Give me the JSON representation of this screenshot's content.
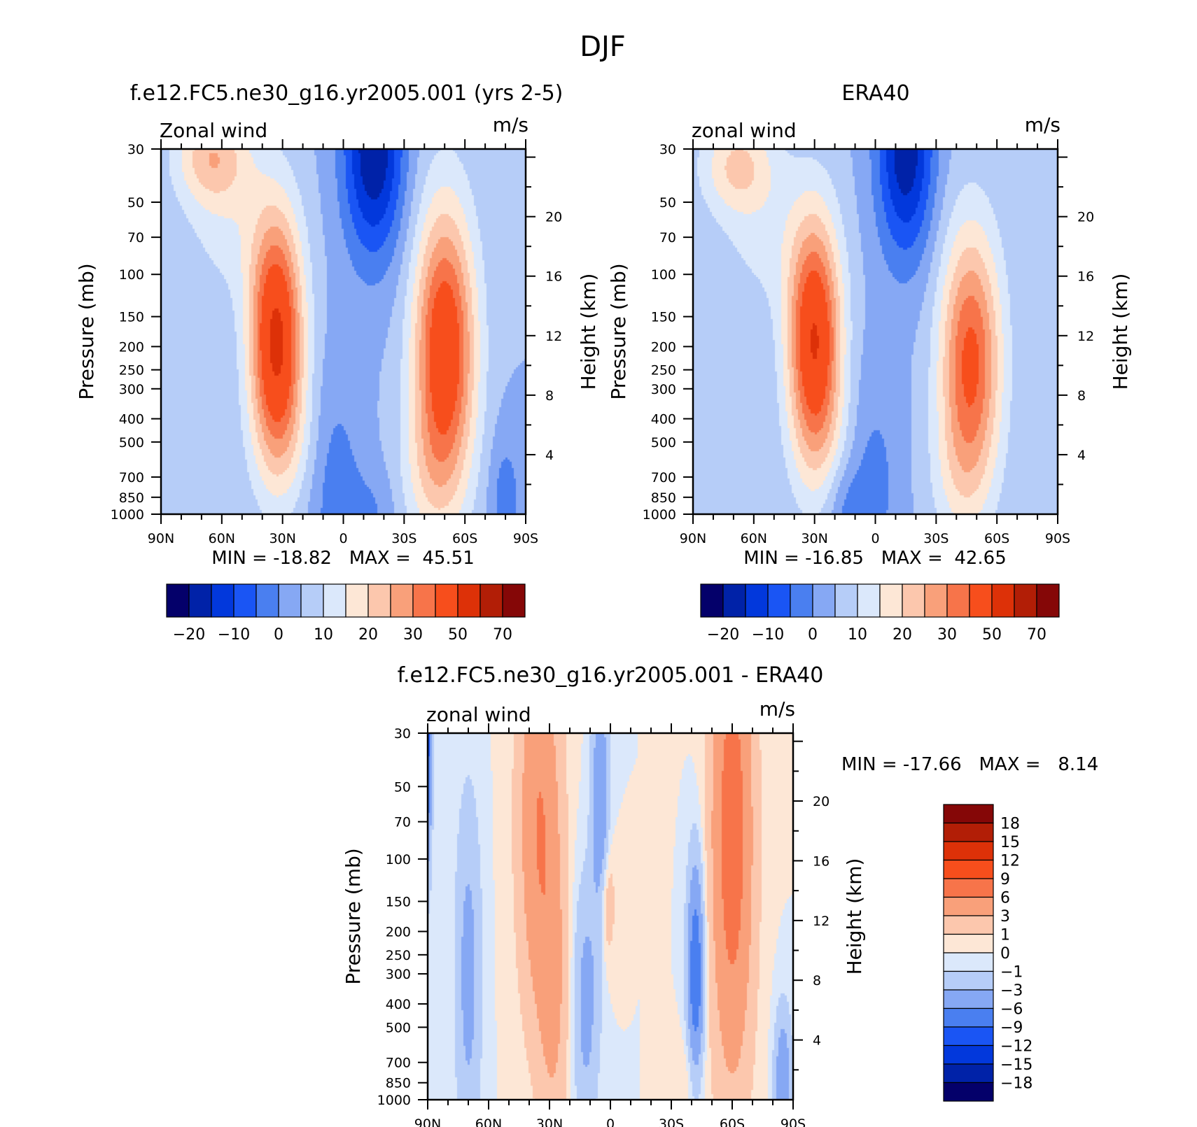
{
  "figure": {
    "title": "DJF"
  },
  "colors": {
    "main_levels": [
      -25,
      -20,
      -15,
      -10,
      -5,
      0,
      5,
      10,
      15,
      20,
      25,
      30,
      40,
      50,
      60,
      70
    ],
    "main_palette": [
      "#04006a",
      "#0022a8",
      "#0238dc",
      "#1a55f4",
      "#4a7ff0",
      "#86a8f4",
      "#b6cdf8",
      "#dbe8fb",
      "#fde7d6",
      "#fcc7ad",
      "#f9a07a",
      "#f7744a",
      "#f74e1c",
      "#dd3108",
      "#b21e06",
      "#850707"
    ],
    "diff_levels": [
      -18,
      -15,
      -12,
      -9,
      -6,
      -3,
      -1,
      0,
      1,
      3,
      6,
      9,
      12,
      15,
      18
    ],
    "diff_palette": [
      "#04006a",
      "#0022a8",
      "#0238dc",
      "#1a55f4",
      "#4a7ff0",
      "#86a8f4",
      "#b6cdf8",
      "#dbe8fb",
      "#fde7d6",
      "#fcc7ad",
      "#f9a07a",
      "#f7744a",
      "#f74e1c",
      "#dd3108",
      "#b21e06",
      "#850707"
    ]
  },
  "colorbar_main": {
    "tick_labels": [
      "-20",
      "-10",
      "0",
      "10",
      "20",
      "30",
      "50",
      "70"
    ]
  },
  "colorbar_diff": {
    "tick_labels": [
      "18",
      "15",
      "12",
      "9",
      "6",
      "3",
      "1",
      "0",
      "-1",
      "-3",
      "-6",
      "-9",
      "-12",
      "-15",
      "-18"
    ]
  },
  "chart_data": [
    {
      "type": "heatmap",
      "title": "f.e12.FC5.ne30_g16.yr2005.001 (yrs 2-5)",
      "subtitle_left": "Zonal wind",
      "subtitle_right": "m/s",
      "ylabel": "Pressure (mb)",
      "ylabel_right": "Height (km)",
      "stats": "MIN = -18.82   MAX =  45.51",
      "x_ticks": [
        "90N",
        "60N",
        "30N",
        "0",
        "30S",
        "60S",
        "90S"
      ],
      "y_ticks": [
        "30",
        "50",
        "70",
        "100",
        "150",
        "200",
        "250",
        "300",
        "400",
        "500",
        "700",
        "850",
        "1000"
      ],
      "y_right_ticks": [
        "4",
        "8",
        "12",
        "16",
        "20"
      ],
      "xlim": [
        90,
        -90
      ],
      "ylim": [
        1000,
        30
      ],
      "blobs": [
        {
          "lat": 33,
          "p": 190,
          "amp": 42,
          "wlat": 13,
          "wlogp": 0.5
        },
        {
          "lat": 65,
          "p": 32,
          "amp": 17,
          "wlat": 18,
          "wlogp": 0.2
        },
        {
          "lat": 55,
          "p": 60,
          "amp": 7,
          "wlat": 24,
          "wlogp": 0.35
        },
        {
          "lat": 22,
          "p": 520,
          "amp": 5,
          "wlat": 20,
          "wlogp": 0.3
        },
        {
          "lat": -50,
          "p": 210,
          "amp": 38,
          "wlat": 15,
          "wlogp": 0.6
        },
        {
          "lat": -40,
          "p": 700,
          "amp": 6,
          "wlat": 15,
          "wlogp": 0.3
        },
        {
          "lat": -15,
          "p": 30,
          "amp": -25,
          "wlat": 15,
          "wlogp": 0.45
        },
        {
          "lat": 5,
          "p": 700,
          "amp": -9,
          "wlat": 14,
          "wlogp": 0.45
        },
        {
          "lat": -15,
          "p": 1000,
          "amp": -5,
          "wlat": 12,
          "wlogp": 0.2
        },
        {
          "lat": -80,
          "p": 900,
          "amp": -8,
          "wlat": 8,
          "wlogp": 0.3
        }
      ]
    },
    {
      "type": "heatmap",
      "title": "ERA40",
      "subtitle_left": "zonal wind",
      "subtitle_right": "m/s",
      "ylabel": "Pressure (mb)",
      "ylabel_right": "Height (km)",
      "stats": "MIN = -16.85   MAX =  42.65",
      "x_ticks": [
        "90N",
        "60N",
        "30N",
        "0",
        "30S",
        "60S",
        "90S"
      ],
      "y_ticks": [
        "30",
        "50",
        "70",
        "100",
        "150",
        "200",
        "250",
        "300",
        "400",
        "500",
        "700",
        "850",
        "1000"
      ],
      "y_right_ticks": [
        "4",
        "8",
        "12",
        "16",
        "20"
      ],
      "xlim": [
        90,
        -90
      ],
      "ylim": [
        1000,
        30
      ],
      "blobs": [
        {
          "lat": 30,
          "p": 190,
          "amp": 40,
          "wlat": 13,
          "wlogp": 0.5
        },
        {
          "lat": 68,
          "p": 35,
          "amp": 15,
          "wlat": 18,
          "wlogp": 0.2
        },
        {
          "lat": 55,
          "p": 70,
          "amp": 6,
          "wlat": 24,
          "wlogp": 0.35
        },
        {
          "lat": 20,
          "p": 520,
          "amp": 4,
          "wlat": 20,
          "wlogp": 0.3
        },
        {
          "lat": -47,
          "p": 230,
          "amp": 32,
          "wlat": 15,
          "wlogp": 0.55
        },
        {
          "lat": -40,
          "p": 700,
          "amp": 5,
          "wlat": 15,
          "wlogp": 0.3
        },
        {
          "lat": -15,
          "p": 30,
          "amp": -24,
          "wlat": 14,
          "wlogp": 0.45
        },
        {
          "lat": 2,
          "p": 700,
          "amp": -8,
          "wlat": 14,
          "wlogp": 0.45
        },
        {
          "lat": 15,
          "p": 950,
          "amp": -6,
          "wlat": 10,
          "wlogp": 0.2
        }
      ]
    },
    {
      "type": "heatmap",
      "title": "f.e12.FC5.ne30_g16.yr2005.001 - ERA40",
      "subtitle_left": "zonal wind",
      "subtitle_right": "m/s",
      "ylabel": "Pressure (mb)",
      "ylabel_right": "Height (km)",
      "stats": "MIN = -17.66   MAX =   8.14",
      "x_ticks": [
        "90N",
        "60N",
        "30N",
        "0",
        "30S",
        "60S",
        "90S"
      ],
      "y_ticks": [
        "30",
        "50",
        "70",
        "100",
        "150",
        "200",
        "250",
        "300",
        "400",
        "500",
        "700",
        "850",
        "1000"
      ],
      "y_right_ticks": [
        "4",
        "8",
        "12",
        "16",
        "20"
      ],
      "xlim": [
        90,
        -90
      ],
      "ylim": [
        1000,
        30
      ],
      "blobs": [
        {
          "lat": 35,
          "p": 70,
          "amp": 6,
          "wlat": 10,
          "wlogp": 0.8
        },
        {
          "lat": 28,
          "p": 400,
          "amp": 3,
          "wlat": 7,
          "wlogp": 0.6
        },
        {
          "lat": 2,
          "p": 150,
          "amp": 3,
          "wlat": 4,
          "wlogp": 0.25
        },
        {
          "lat": -60,
          "p": 80,
          "amp": 8,
          "wlat": 10,
          "wlogp": 1.0
        },
        {
          "lat": -40,
          "p": 800,
          "amp": 1.5,
          "wlat": 6,
          "wlogp": 0.2
        },
        {
          "lat": 70,
          "p": 300,
          "amp": -4,
          "wlat": 6,
          "wlogp": 0.7
        },
        {
          "lat": 5,
          "p": 60,
          "amp": -6,
          "wlat": 4,
          "wlogp": 0.5
        },
        {
          "lat": -42,
          "p": 300,
          "amp": -9,
          "wlat": 4,
          "wlogp": 0.45
        },
        {
          "lat": 12,
          "p": 400,
          "amp": -4,
          "wlat": 6,
          "wlogp": 0.5
        },
        {
          "lat": -85,
          "p": 900,
          "amp": -6,
          "wlat": 4,
          "wlogp": 0.3
        },
        {
          "lat": 90,
          "p": 30,
          "amp": -10,
          "wlat": 2,
          "wlogp": 0.5
        }
      ]
    }
  ]
}
